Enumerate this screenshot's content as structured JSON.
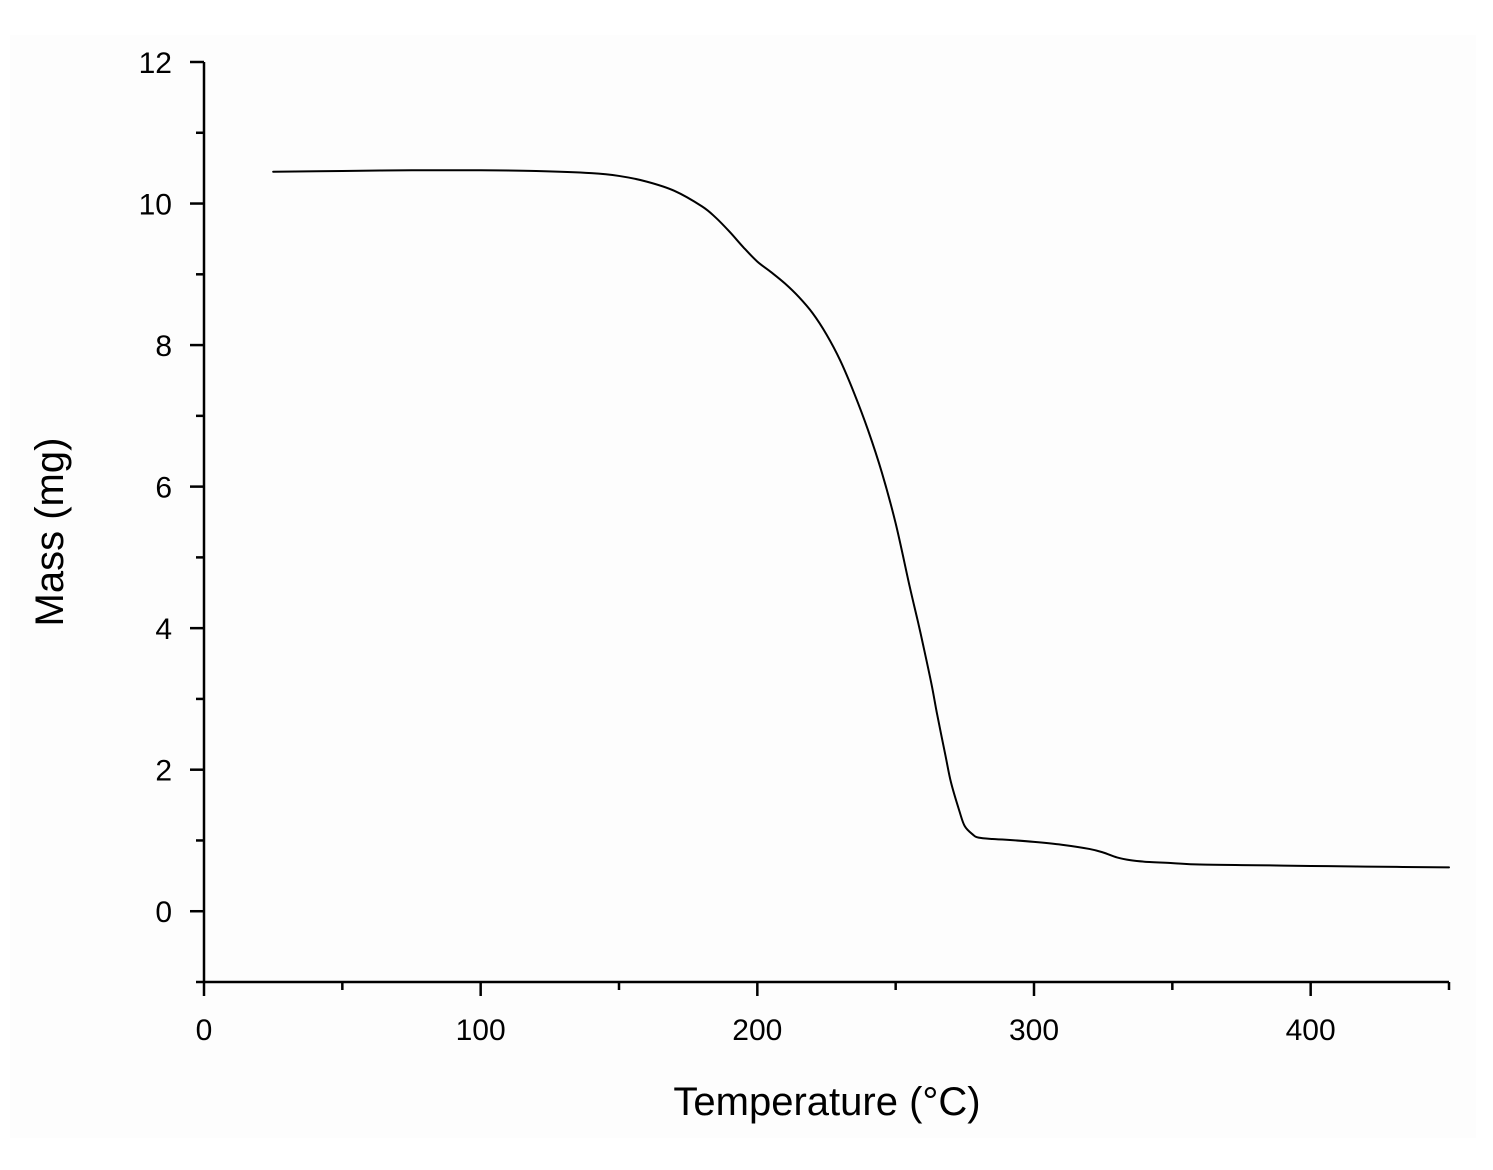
{
  "chart_data": {
    "type": "line",
    "title": "",
    "xlabel": "Temperature (°C)",
    "ylabel": "Mass (mg)",
    "xlim": [
      0,
      450
    ],
    "ylim": [
      -1,
      12
    ],
    "xticks": [
      0,
      100,
      200,
      300,
      400
    ],
    "yticks": [
      0,
      2,
      4,
      6,
      8,
      10,
      12
    ],
    "x_minor_step": 50,
    "y_minor_step": 1,
    "grid": false,
    "legend": "none",
    "line_color": "#000000",
    "series": [
      {
        "x": [
          25,
          50,
          75,
          100,
          120,
          140,
          150,
          160,
          170,
          180,
          185,
          190,
          195,
          200,
          205,
          210,
          215,
          220,
          225,
          230,
          235,
          240,
          245,
          250,
          255,
          258,
          260,
          263,
          265,
          268,
          270,
          273,
          275,
          278,
          280,
          285,
          290,
          300,
          310,
          320,
          325,
          330,
          335,
          340,
          350,
          360,
          380,
          400,
          420,
          450
        ],
        "y": [
          10.45,
          10.46,
          10.47,
          10.47,
          10.46,
          10.43,
          10.39,
          10.31,
          10.18,
          9.96,
          9.8,
          9.6,
          9.38,
          9.18,
          9.03,
          8.87,
          8.68,
          8.45,
          8.15,
          7.78,
          7.32,
          6.8,
          6.2,
          5.48,
          4.6,
          4.1,
          3.75,
          3.2,
          2.78,
          2.2,
          1.82,
          1.42,
          1.2,
          1.08,
          1.04,
          1.02,
          1.01,
          0.98,
          0.94,
          0.88,
          0.83,
          0.76,
          0.72,
          0.7,
          0.68,
          0.66,
          0.65,
          0.64,
          0.63,
          0.62
        ]
      }
    ]
  }
}
